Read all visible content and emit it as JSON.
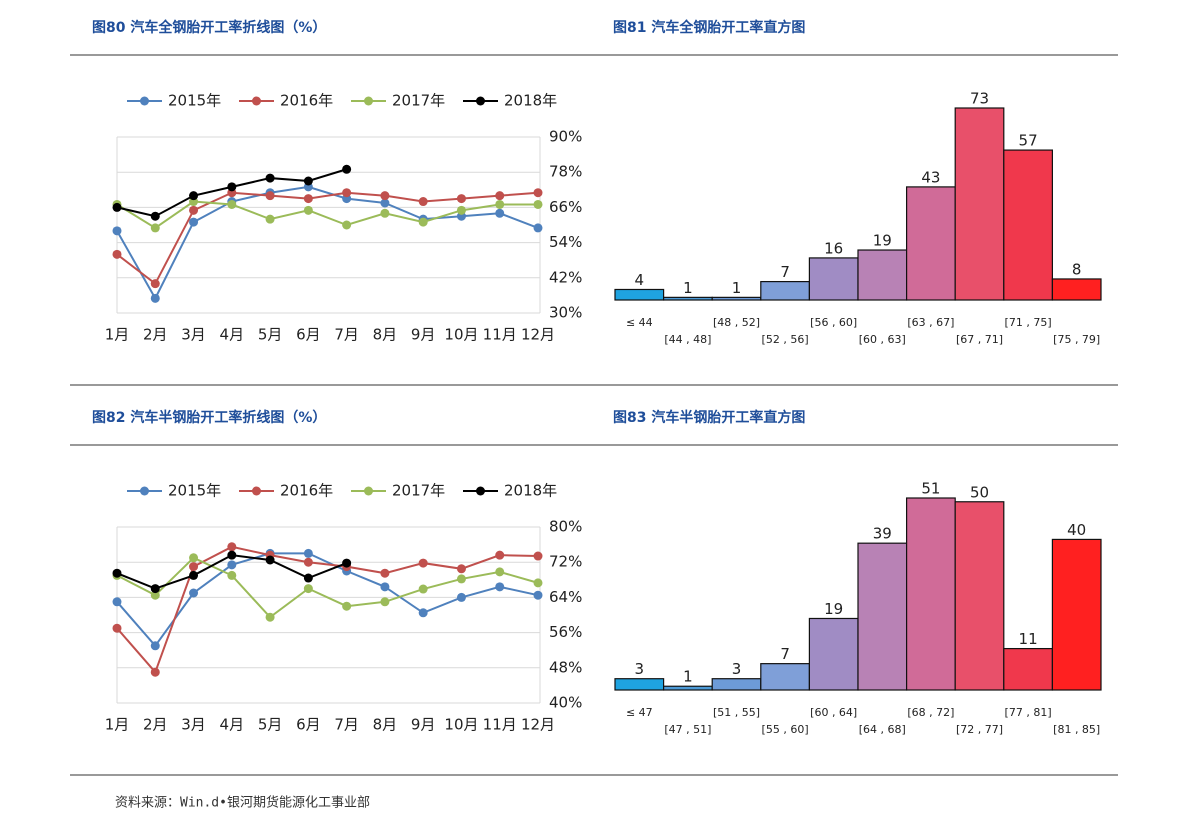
{
  "chart_data": [
    {
      "type": "line",
      "title": "图80 汽车全钢胎开工率折线图（%）",
      "categories": [
        "1月",
        "2月",
        "3月",
        "4月",
        "5月",
        "6月",
        "7月",
        "8月",
        "9月",
        "10月",
        "11月",
        "12月"
      ],
      "series": [
        {
          "name": "2015年",
          "color": "#4f81bd",
          "values": [
            58,
            35,
            61,
            68,
            71,
            73,
            69,
            67.5,
            62,
            63,
            64,
            59
          ]
        },
        {
          "name": "2016年",
          "color": "#c0504d",
          "values": [
            50,
            40,
            65,
            71,
            70,
            69,
            71,
            70,
            68,
            69,
            70,
            71
          ]
        },
        {
          "name": "2017年",
          "color": "#9bbb59",
          "values": [
            67,
            59,
            68,
            67,
            62,
            65,
            60,
            64,
            61,
            65,
            67,
            67
          ]
        },
        {
          "name": "2018年",
          "color": "#000000",
          "values": [
            66,
            63,
            70,
            73,
            76,
            75,
            79,
            null,
            null,
            null,
            null,
            null
          ]
        }
      ],
      "ylim": [
        30,
        90
      ],
      "yticks": [
        {
          "value": 30,
          "label": "30%"
        },
        {
          "value": 42,
          "label": "42%"
        },
        {
          "value": 54,
          "label": "54%"
        },
        {
          "value": 66,
          "label": "66%"
        },
        {
          "value": 78,
          "label": "78%"
        },
        {
          "value": 90,
          "label": "90%"
        }
      ],
      "grid": true,
      "legend": "top"
    },
    {
      "type": "bar",
      "title": "图81 汽车全钢胎开工率直方图",
      "categories": [
        "≤ 44",
        "[44 , 48]",
        "[48 , 52]",
        "[52 , 56]",
        "[56 , 60]",
        "[60 , 63]",
        "[63 , 67]",
        "[67 , 71]",
        "[71 , 75]",
        "[75 , 79]"
      ],
      "values": [
        4,
        1,
        1,
        7,
        16,
        19,
        43,
        73,
        57,
        8
      ],
      "colors": [
        "#1fa3e0",
        "#4d9ad6",
        "#6d9bd8",
        "#7f9fd8",
        "#a08cc4",
        "#b882b5",
        "#d06b98",
        "#e8506a",
        "#f0384c",
        "#ff2020"
      ],
      "highlight_index": 9,
      "highlight_color": "#e8322f"
    },
    {
      "type": "line",
      "title": "图82 汽车半钢胎开工率折线图（%）",
      "categories": [
        "1月",
        "2月",
        "3月",
        "4月",
        "5月",
        "6月",
        "7月",
        "8月",
        "9月",
        "10月",
        "11月",
        "12月"
      ],
      "series": [
        {
          "name": "2015年",
          "color": "#4f81bd",
          "values": [
            63,
            53,
            65,
            71.4,
            74,
            74,
            70,
            66.4,
            60.5,
            64,
            66.4,
            64.5
          ]
        },
        {
          "name": "2016年",
          "color": "#c0504d",
          "values": [
            57,
            47,
            71,
            75.5,
            73.6,
            72,
            71,
            69.5,
            71.8,
            70.5,
            73.6,
            73.4
          ]
        },
        {
          "name": "2017年",
          "color": "#9bbb59",
          "values": [
            69,
            64.5,
            73,
            69,
            59.5,
            66,
            62,
            63,
            65.9,
            68.2,
            69.8,
            67.3
          ]
        },
        {
          "name": "2018年",
          "color": "#000000",
          "values": [
            69.5,
            66,
            69,
            73.6,
            72.5,
            68.4,
            71.8,
            null,
            null,
            null,
            null,
            null
          ]
        }
      ],
      "ylim": [
        40,
        80
      ],
      "yticks": [
        {
          "value": 40,
          "label": "40%"
        },
        {
          "value": 48,
          "label": "48%"
        },
        {
          "value": 56,
          "label": "56%"
        },
        {
          "value": 64,
          "label": "64%"
        },
        {
          "value": 72,
          "label": "72%"
        },
        {
          "value": 80,
          "label": "80%"
        }
      ],
      "grid": true,
      "legend": "top"
    },
    {
      "type": "bar",
      "title": "图83 汽车半钢胎开工率直方图",
      "categories": [
        "≤ 47",
        "[47 , 51]",
        "[51 , 55]",
        "[55 , 60]",
        "[60 , 64]",
        "[64 , 68]",
        "[68 , 72]",
        "[72 , 77]",
        "[77 , 81]",
        "[81 , 85]"
      ],
      "values": [
        3,
        1,
        3,
        7,
        19,
        39,
        51,
        50,
        11,
        40
      ],
      "colors": [
        "#1fa3e0",
        "#4d9ad6",
        "#6d9bd8",
        "#7f9fd8",
        "#a08cc4",
        "#b882b5",
        "#d06b98",
        "#e8506a",
        "#f0384c",
        "#ff2020"
      ],
      "highlight_index": 7,
      "highlight_color": "#e8322f"
    }
  ],
  "source": "资料来源：Win.d•银河期货能源化工事业部"
}
